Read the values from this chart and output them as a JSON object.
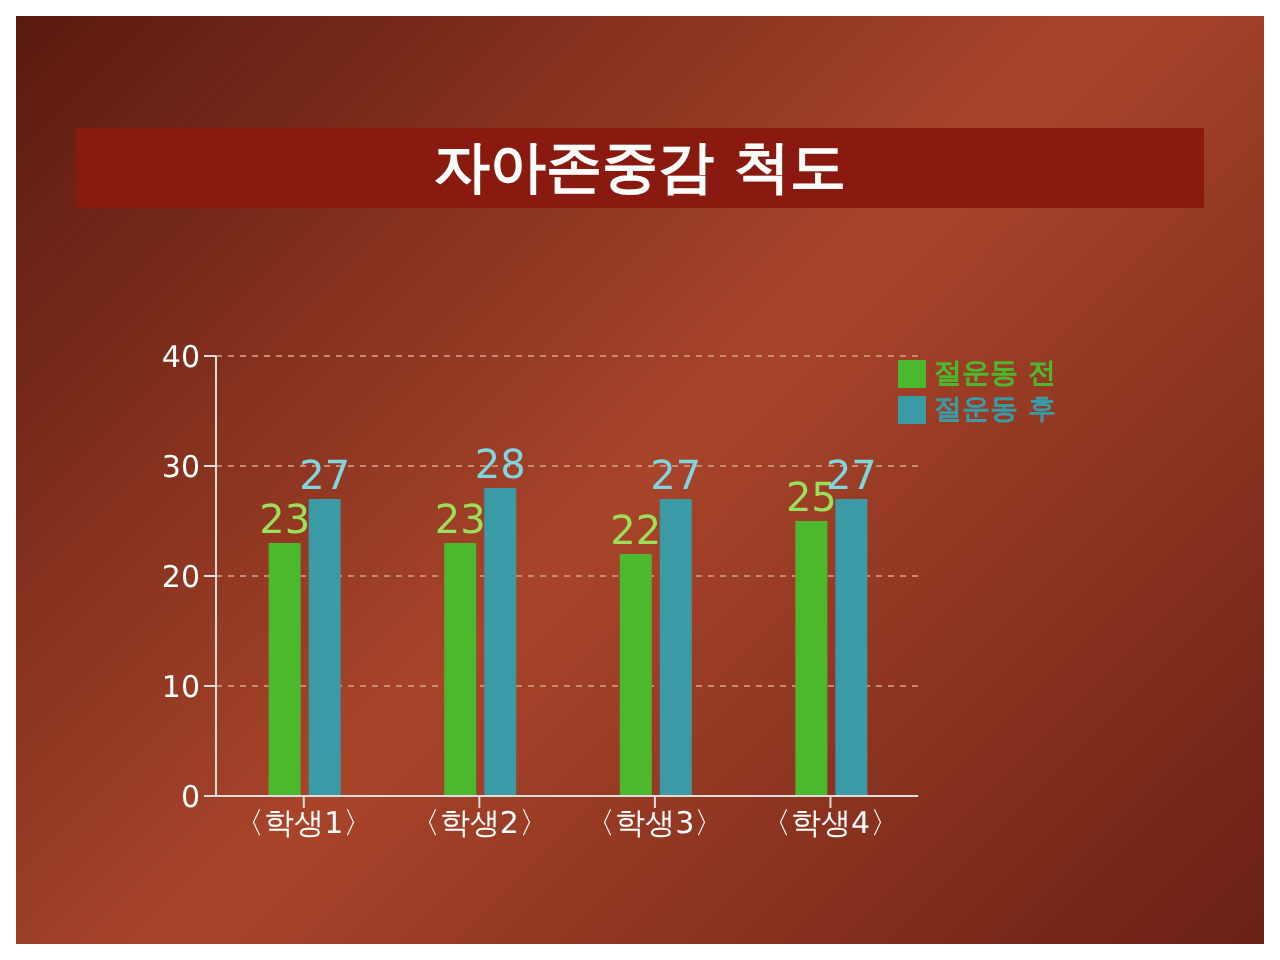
{
  "chart_data": {
    "type": "bar",
    "title": "자아존중감 척도",
    "categories": [
      "〈학생1〉",
      "〈학생2〉",
      "〈학생3〉",
      "〈학생4〉"
    ],
    "series": [
      {
        "name": "절운동 전",
        "color": "#4cb82e",
        "values": [
          23,
          23,
          22,
          25
        ]
      },
      {
        "name": "절운동 후",
        "color": "#3a9aa6",
        "values": [
          27,
          28,
          27,
          27
        ]
      }
    ],
    "ylim": [
      0,
      40
    ],
    "yticks": [
      0,
      10,
      20,
      30,
      40
    ],
    "grid": "y",
    "legend": "top right",
    "data_labels": true
  }
}
